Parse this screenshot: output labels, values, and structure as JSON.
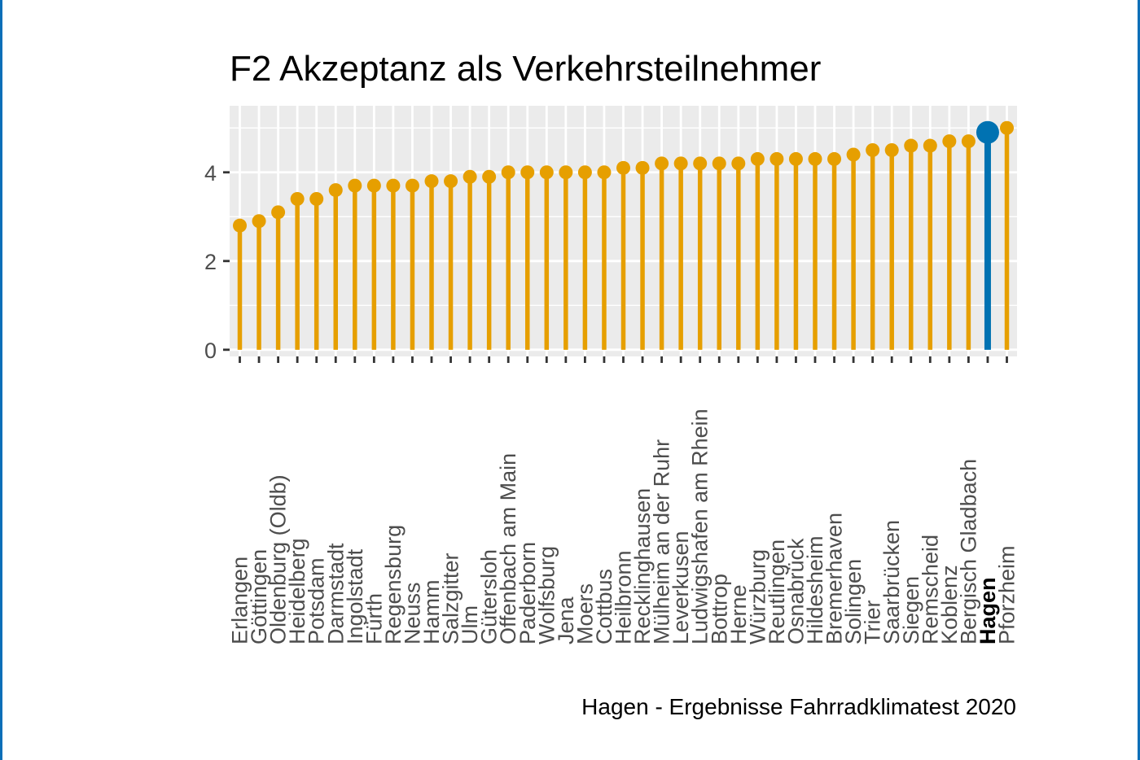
{
  "caption": "Hagen - Ergebnisse Fahrradklimatest 2020",
  "colors": {
    "default": "#E69F00",
    "highlight": "#0072B2",
    "panel": "#EBEBEB",
    "grid": "#FFFFFF"
  },
  "chart_data": {
    "type": "lollipop",
    "title": "F2 Akzeptanz als Verkehrsteilnehmer",
    "xlabel": "",
    "ylabel": "",
    "ylim": [
      -0.15,
      5.5
    ],
    "yticks": [
      0,
      2,
      4
    ],
    "highlight": "Hagen",
    "grid": true,
    "categories": [
      "Erlangen",
      "Göttingen",
      "Oldenburg (Oldb)",
      "Heidelberg",
      "Potsdam",
      "Darmstadt",
      "Ingolstadt",
      "Fürth",
      "Regensburg",
      "Neuss",
      "Hamm",
      "Salzgitter",
      "Ulm",
      "Gütersloh",
      "Offenbach am Main",
      "Paderborn",
      "Wolfsburg",
      "Jena",
      "Moers",
      "Cottbus",
      "Heilbronn",
      "Recklinghausen",
      "Mülheim an der Ruhr",
      "Leverkusen",
      "Ludwigshafen am Rhein",
      "Bottrop",
      "Herne",
      "Würzburg",
      "Reutlingen",
      "Osnabrück",
      "Hildesheim",
      "Bremerhaven",
      "Solingen",
      "Trier",
      "Saarbrücken",
      "Siegen",
      "Remscheid",
      "Koblenz",
      "Bergisch Gladbach",
      "Hagen",
      "Pforzheim"
    ],
    "values": [
      2.8,
      2.9,
      3.1,
      3.4,
      3.4,
      3.6,
      3.7,
      3.7,
      3.7,
      3.7,
      3.8,
      3.8,
      3.9,
      3.9,
      4.0,
      4.0,
      4.0,
      4.0,
      4.0,
      4.0,
      4.1,
      4.1,
      4.2,
      4.2,
      4.2,
      4.2,
      4.2,
      4.3,
      4.3,
      4.3,
      4.3,
      4.3,
      4.4,
      4.5,
      4.5,
      4.6,
      4.6,
      4.7,
      4.7,
      4.9,
      5.0
    ]
  }
}
